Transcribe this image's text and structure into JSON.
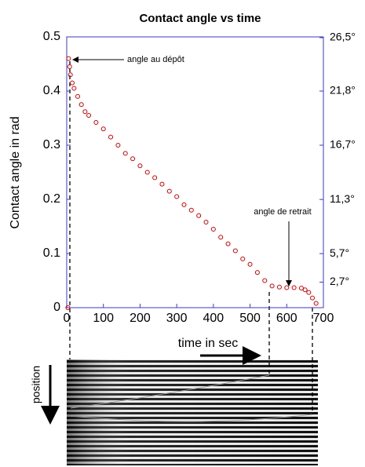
{
  "chart_data": {
    "type": "scatter",
    "title": "Contact angle vs time",
    "x_label": "time in sec",
    "y_label": "Contact angle in rad",
    "annotations": [
      "angle au dépôt",
      "angle de retrait",
      "position"
    ],
    "color": "#cc0000",
    "frame_color": "#3a3ac8",
    "xlim": [
      0,
      700
    ],
    "xticks": [
      0,
      100,
      200,
      300,
      400,
      500,
      600,
      700
    ],
    "ylim": [
      0,
      0.5
    ],
    "yticks": [
      0,
      0.1,
      0.2,
      0.3,
      0.4,
      0.5
    ],
    "y2scale": "tan",
    "y2lim": [
      0,
      26.5
    ],
    "y2ticks": [
      {
        "value": 26.5,
        "label": "26,5°"
      },
      {
        "value": 21.8,
        "label": "21,8°"
      },
      {
        "value": 16.7,
        "label": "16,7°"
      },
      {
        "value": 11.3,
        "label": "11,3°"
      },
      {
        "value": 5.7,
        "label": "5,7°"
      },
      {
        "value": 2.7,
        "label": "2,7°"
      }
    ],
    "x": [
      3,
      5,
      8,
      10,
      15,
      20,
      30,
      40,
      50,
      60,
      80,
      100,
      120,
      140,
      160,
      180,
      200,
      220,
      240,
      260,
      280,
      300,
      320,
      340,
      360,
      380,
      400,
      420,
      440,
      460,
      480,
      500,
      520,
      540,
      560,
      580,
      600,
      620,
      640,
      650,
      660,
      670,
      680
    ],
    "values": [
      0,
      0.46,
      0.445,
      0.43,
      0.415,
      0.405,
      0.39,
      0.375,
      0.362,
      0.355,
      0.342,
      0.33,
      0.315,
      0.3,
      0.285,
      0.275,
      0.262,
      0.25,
      0.24,
      0.228,
      0.215,
      0.205,
      0.19,
      0.18,
      0.17,
      0.158,
      0.145,
      0.13,
      0.118,
      0.105,
      0.09,
      0.08,
      0.065,
      0.05,
      0.04,
      0.038,
      0.037,
      0.037,
      0.036,
      0.033,
      0.028,
      0.018,
      0.008
    ]
  }
}
